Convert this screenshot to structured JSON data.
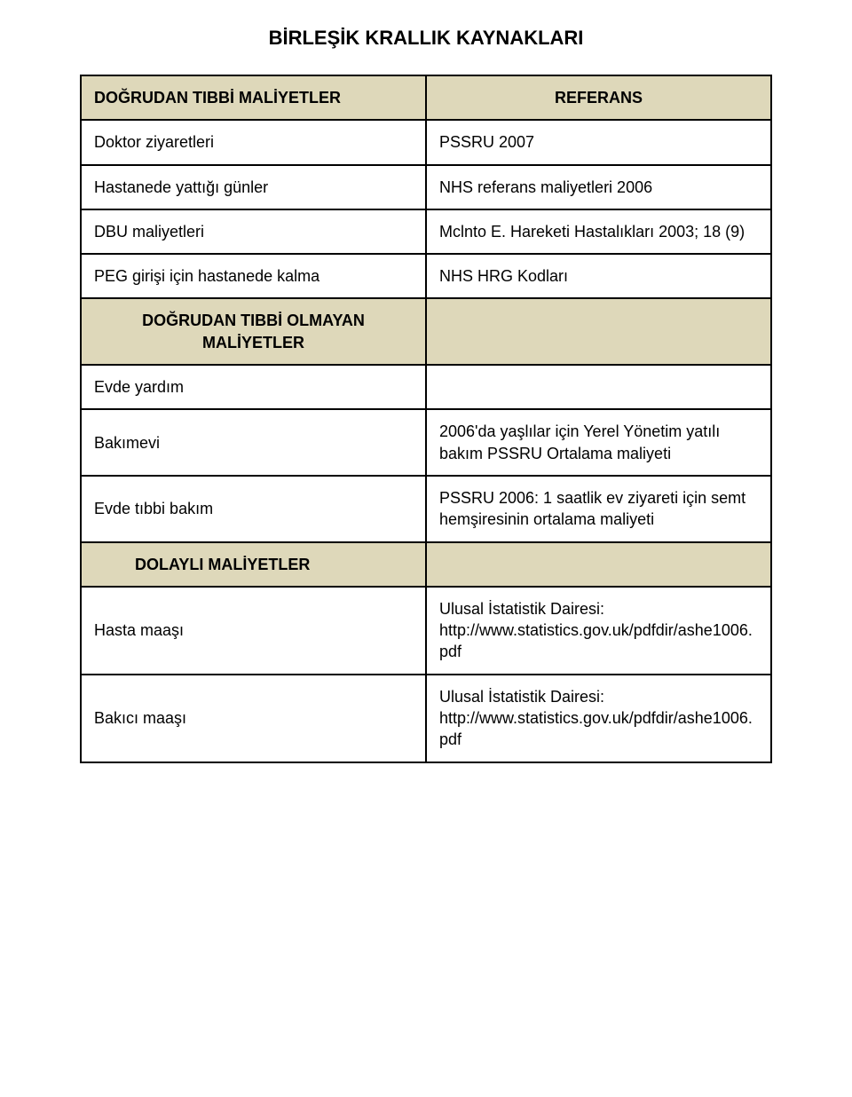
{
  "colors": {
    "header_bg": "#ded8ba",
    "border": "#000000",
    "page_bg": "#ffffff",
    "text": "#000000"
  },
  "title": "BİRLEŞİK KRALLIK KAYNAKLARI",
  "section1": {
    "left_header": "DOĞRUDAN TIBBİ MALİYETLER",
    "right_header": "REFERANS",
    "rows": [
      {
        "left": "Doktor ziyaretleri",
        "right": "PSSRU 2007"
      },
      {
        "left": "Hastanede yattığı günler",
        "right": "NHS referans maliyetleri 2006"
      },
      {
        "left": "DBU maliyetleri",
        "right": "Mclnto E. Hareketi Hastalıkları 2003; 18 (9)"
      },
      {
        "left": "PEG girişi için hastanede kalma",
        "right": "NHS HRG Kodları"
      }
    ]
  },
  "section2": {
    "left_header": "DOĞRUDAN TIBBİ OLMAYAN MALİYETLER",
    "rows": [
      {
        "left": "Evde yardım",
        "right": ""
      },
      {
        "left": "Bakımevi",
        "right": "2006'da yaşlılar için Yerel Yönetim yatılı bakım PSSRU Ortalama maliyeti"
      },
      {
        "left": "Evde tıbbi bakım",
        "right": "PSSRU 2006: 1 saatlik ev ziyareti için semt hemşiresinin ortalama maliyeti"
      }
    ]
  },
  "section3": {
    "left_header": "DOLAYLI MALİYETLER",
    "rows": [
      {
        "left": "Hasta maaşı",
        "right": "Ulusal İstatistik Dairesi: http://www.statistics.gov.uk/pdfdir/ashe1006.pdf"
      },
      {
        "left": "Bakıcı maaşı",
        "right": "Ulusal İstatistik Dairesi: http://www.statistics.gov.uk/pdfdir/ashe1006.pdf"
      }
    ]
  }
}
